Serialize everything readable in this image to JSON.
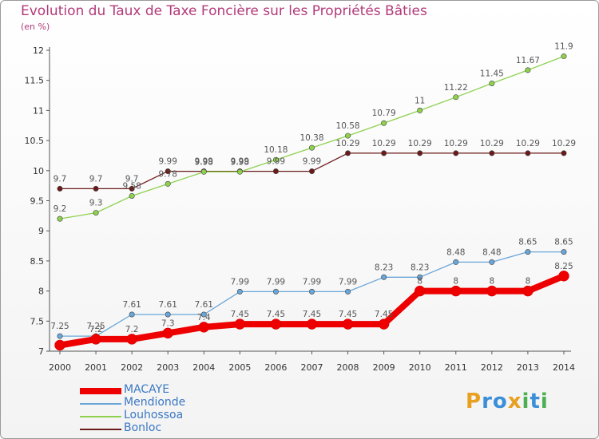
{
  "header": {
    "title": "Evolution du Taux de Taxe Foncière sur les Propriétés Bâties",
    "unit": "(en %)"
  },
  "logo": {
    "text": "Proxiti",
    "letters": [
      "P",
      "r",
      "o",
      "x",
      "i",
      "t",
      "i"
    ],
    "colors": [
      "#e8a020",
      "#3a8fd8",
      "#3a8fd8",
      "#e8a020",
      "#4caf50",
      "#3a8fd8",
      "#4caf50"
    ]
  },
  "chart_data": {
    "type": "line",
    "title": "Evolution du Taux de Taxe Foncière sur les Propriétés Bâties",
    "ylabel": "(en %)",
    "xlabel": "",
    "x": [
      "2000",
      "2001",
      "2002",
      "2003",
      "2004",
      "2005",
      "2006",
      "2007",
      "2008",
      "2009",
      "2010",
      "2011",
      "2012",
      "2013",
      "2014"
    ],
    "ylim": [
      7,
      12
    ],
    "yticks": [
      "7",
      "7.5",
      "8",
      "8.5",
      "9",
      "9.5",
      "10",
      "10.5",
      "11",
      "11.5",
      "12"
    ],
    "grid": false,
    "legend_position": "bottom-left",
    "series": [
      {
        "name": "Bonloc",
        "color": "#6b1a1a",
        "values": [
          9.7,
          9.7,
          9.7,
          9.99,
          9.99,
          9.99,
          9.99,
          9.99,
          10.29,
          10.29,
          10.29,
          10.29,
          10.29,
          10.29,
          10.29
        ],
        "labels": [
          "9.7",
          "9.7",
          "9.7",
          "9.99",
          "9.99",
          "9.99",
          "9.99",
          "9.99",
          "10.29",
          "10.29",
          "10.29",
          "10.29",
          "10.29",
          "10.29",
          "10.29"
        ]
      },
      {
        "name": "Louhossoa",
        "color": "#8fd14f",
        "values": [
          9.2,
          9.3,
          9.58,
          9.78,
          9.98,
          9.98,
          10.18,
          10.38,
          10.58,
          10.79,
          11,
          11.22,
          11.45,
          11.67,
          11.9
        ],
        "labels": [
          "9.2",
          "9.3",
          "9.58",
          "9.78",
          "9.98",
          "9.98",
          "10.18",
          "10.38",
          "10.58",
          "10.79",
          "11",
          "11.22",
          "11.45",
          "11.67",
          "11.9"
        ]
      },
      {
        "name": "Mendionde",
        "color": "#6aa6d8",
        "values": [
          7.25,
          7.25,
          7.61,
          7.61,
          7.61,
          7.99,
          7.99,
          7.99,
          7.99,
          8.23,
          8.23,
          8.48,
          8.48,
          8.65,
          8.65
        ],
        "labels": [
          "7.25",
          "7.25",
          "7.61",
          "7.61",
          "7.61",
          "7.99",
          "7.99",
          "7.99",
          "7.99",
          "8.23",
          "8.23",
          "8.48",
          "8.48",
          "8.65",
          "8.65"
        ]
      },
      {
        "name": "MACAYE",
        "color": "#ee0000",
        "values": [
          7.1,
          7.2,
          7.2,
          7.3,
          7.4,
          7.45,
          7.45,
          7.45,
          7.45,
          7.45,
          8,
          8,
          8,
          8,
          8.25
        ],
        "labels": [
          "",
          "7.2",
          "7.2",
          "7.3",
          "7.4",
          "7.45",
          "7.45",
          "7.45",
          "7.45",
          "7.45",
          "8",
          "8",
          "8",
          "8",
          "8.25"
        ]
      }
    ],
    "legend": [
      {
        "name": "MACAYE",
        "color": "#ee0000"
      },
      {
        "name": "Mendionde",
        "color": "#6aa6d8"
      },
      {
        "name": "Louhossoa",
        "color": "#8fd14f"
      },
      {
        "name": "Bonloc",
        "color": "#6b1a1a"
      }
    ]
  }
}
